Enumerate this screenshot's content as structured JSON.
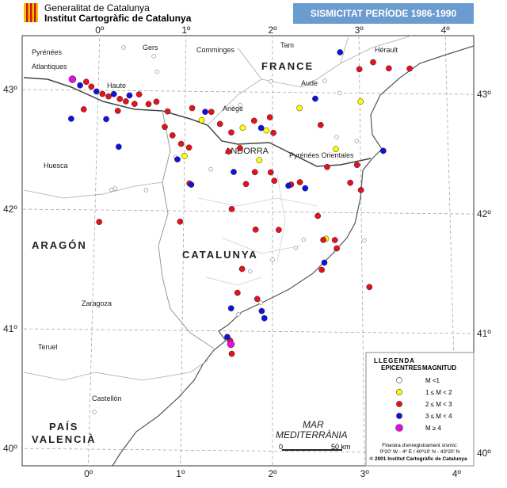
{
  "header": {
    "org1": "Generalitat de Catalunya",
    "org2": "Institut Cartogràfic de Catalunya",
    "title": "SISMICITAT PERÍODE 1986-1990"
  },
  "map": {
    "type": "map",
    "lon_ticks": [
      {
        "value": 0,
        "label": "0º"
      },
      {
        "value": 1,
        "label": "1º"
      },
      {
        "value": 2,
        "label": "2º"
      },
      {
        "value": 3,
        "label": "3º"
      },
      {
        "value": 4,
        "label": "4º"
      }
    ],
    "lat_ticks": [
      {
        "value": 40,
        "label": "40º"
      },
      {
        "value": 41,
        "label": "41º"
      },
      {
        "value": 42,
        "label": "42º"
      },
      {
        "value": 43,
        "label": "43º"
      }
    ],
    "places": [
      "Pyrénées",
      "Atlantiques",
      "Gers",
      "Comminges",
      "Tam",
      "Hérault",
      "FRANCE",
      "Aude",
      "Ariège",
      "Haute",
      "ANDORRA",
      "Pyrénées Orientales",
      "Huesca",
      "ARAGÓN",
      "CATALUNYA",
      "Zaragoza",
      "Teruel",
      "Castellón",
      "PAÍS",
      "VALENCIÀ",
      "MAR",
      "MEDITERRÀNIA"
    ],
    "scale": {
      "start": "0",
      "end": "50 km"
    },
    "legend": {
      "title": "LLEGENDA",
      "col1": "EPICENTRES",
      "col2": "MAGNITUD",
      "classes": [
        {
          "label": "M <1",
          "color": "#ffffff",
          "points": [
            [
              0.18,
              42.17
            ],
            [
              0.22,
              42.18
            ],
            [
              0.57,
              42.17
            ],
            [
              2.26,
              41.7
            ],
            [
              2.35,
              41.77
            ],
            [
              2.77,
              43.0
            ],
            [
              1.87,
              41.24
            ],
            [
              1.62,
              41.14
            ],
            [
              0.05,
              40.31
            ],
            [
              0.28,
              43.36
            ],
            [
              0.63,
              43.29
            ],
            [
              0.67,
              43.16
            ],
            [
              1.63,
              42.89
            ],
            [
              1.98,
              43.09
            ],
            [
              2.6,
              43.1
            ],
            [
              2.73,
              42.63
            ],
            [
              2.96,
              42.6
            ],
            [
              3.03,
              41.77
            ],
            [
              2.0,
              41.6
            ],
            [
              1.75,
              41.5
            ],
            [
              0.9,
              42.45
            ],
            [
              1.3,
              42.35
            ]
          ]
        },
        {
          "label": "1 ≤ M < 2",
          "color": "#ffff00",
          "points": [
            [
              1.0,
              42.46
            ],
            [
              1.19,
              42.76
            ],
            [
              1.66,
              42.7
            ],
            [
              1.93,
              42.68
            ],
            [
              1.85,
              42.43
            ],
            [
              2.72,
              42.53
            ],
            [
              2.31,
              42.87
            ],
            [
              3.01,
              42.93
            ],
            [
              2.6,
              41.78
            ]
          ]
        },
        {
          "label": "2 ≤ M < 3",
          "color": "#e8101a",
          "points": [
            [
              -0.14,
              43.07
            ],
            [
              -0.08,
              43.03
            ],
            [
              0.05,
              42.97
            ],
            [
              0.12,
              42.95
            ],
            [
              0.25,
              42.93
            ],
            [
              0.32,
              42.91
            ],
            [
              0.42,
              42.89
            ],
            [
              0.47,
              42.97
            ],
            [
              -0.16,
              42.84
            ],
            [
              0.23,
              42.83
            ],
            [
              0.58,
              42.89
            ],
            [
              0.67,
              42.91
            ],
            [
              0.8,
              42.83
            ],
            [
              0.77,
              42.7
            ],
            [
              0.86,
              42.63
            ],
            [
              0.96,
              42.56
            ],
            [
              1.05,
              42.53
            ],
            [
              1.08,
              42.86
            ],
            [
              1.3,
              42.83
            ],
            [
              1.4,
              42.73
            ],
            [
              1.53,
              42.66
            ],
            [
              1.79,
              42.76
            ],
            [
              1.97,
              42.79
            ],
            [
              2.01,
              42.66
            ],
            [
              1.63,
              42.53
            ],
            [
              1.5,
              42.5
            ],
            [
              1.8,
              42.33
            ],
            [
              1.98,
              42.33
            ],
            [
              2.02,
              42.26
            ],
            [
              2.21,
              42.23
            ],
            [
              2.31,
              42.25
            ],
            [
              1.06,
              42.23
            ],
            [
              1.7,
              42.23
            ],
            [
              2.62,
              42.38
            ],
            [
              2.55,
              42.73
            ],
            [
              3.0,
              43.2
            ],
            [
              2.96,
              42.4
            ],
            [
              2.88,
              42.25
            ],
            [
              3.0,
              42.19
            ],
            [
              3.16,
              43.26
            ],
            [
              3.34,
              43.21
            ],
            [
              3.58,
              43.21
            ],
            [
              2.51,
              41.97
            ],
            [
              2.57,
              41.77
            ],
            [
              2.7,
              41.77
            ],
            [
              2.55,
              41.52
            ],
            [
              2.72,
              41.7
            ],
            [
              2.07,
              41.85
            ],
            [
              1.54,
              42.02
            ],
            [
              0.96,
              41.91
            ],
            [
              0.05,
              41.9
            ],
            [
              1.81,
              41.85
            ],
            [
              1.66,
              41.52
            ],
            [
              1.61,
              41.32
            ],
            [
              1.83,
              41.27
            ],
            [
              1.53,
              40.92
            ],
            [
              1.55,
              40.81
            ],
            [
              3.08,
              41.38
            ]
          ]
        },
        {
          "label": "3 ≤ M < 4",
          "color": "#1010e0",
          "points": [
            [
              -0.21,
              43.04
            ],
            [
              -0.02,
              42.99
            ],
            [
              0.18,
              42.97
            ],
            [
              0.36,
              42.96
            ],
            [
              -0.3,
              42.76
            ],
            [
              0.1,
              42.76
            ],
            [
              0.25,
              42.53
            ],
            [
              0.92,
              42.43
            ],
            [
              1.23,
              42.83
            ],
            [
              1.87,
              42.7
            ],
            [
              1.56,
              42.33
            ],
            [
              2.18,
              42.22
            ],
            [
              2.37,
              42.2
            ],
            [
              1.08,
              42.22
            ],
            [
              2.49,
              42.95
            ],
            [
              3.26,
              42.52
            ],
            [
              2.78,
              43.34
            ],
            [
              2.58,
              41.58
            ],
            [
              1.54,
              41.19
            ],
            [
              1.88,
              41.17
            ],
            [
              1.91,
              41.11
            ],
            [
              1.5,
              40.95
            ]
          ]
        },
        {
          "label": "M ≥ 4",
          "color": "#e010e0",
          "points": [
            [
              -0.3,
              43.09
            ],
            [
              1.54,
              40.89
            ]
          ]
        }
      ]
    },
    "footer": {
      "window": "Finestra d'enregistrament sísmic:",
      "range": "0º20' W - 4º E / 40º10' N - 43º20' N",
      "copyright": "© 2001 Institut Cartogràfic de Catalunya"
    }
  }
}
